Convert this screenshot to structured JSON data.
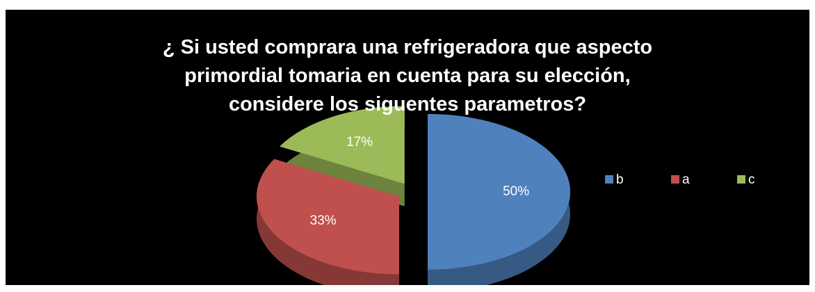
{
  "chart_data": {
    "type": "pie",
    "title": "¿ Si usted comprara una refrigeradora que aspecto primordial tomaria en cuenta para su elección, considere los siguentes parametros?",
    "categories": [
      "b",
      "a",
      "c"
    ],
    "values": [
      50,
      33,
      17
    ],
    "value_labels": [
      "50%",
      "33%",
      "17%"
    ],
    "colors": [
      "#4f81bd",
      "#c0504d",
      "#9bbb59"
    ],
    "legend": "right"
  }
}
